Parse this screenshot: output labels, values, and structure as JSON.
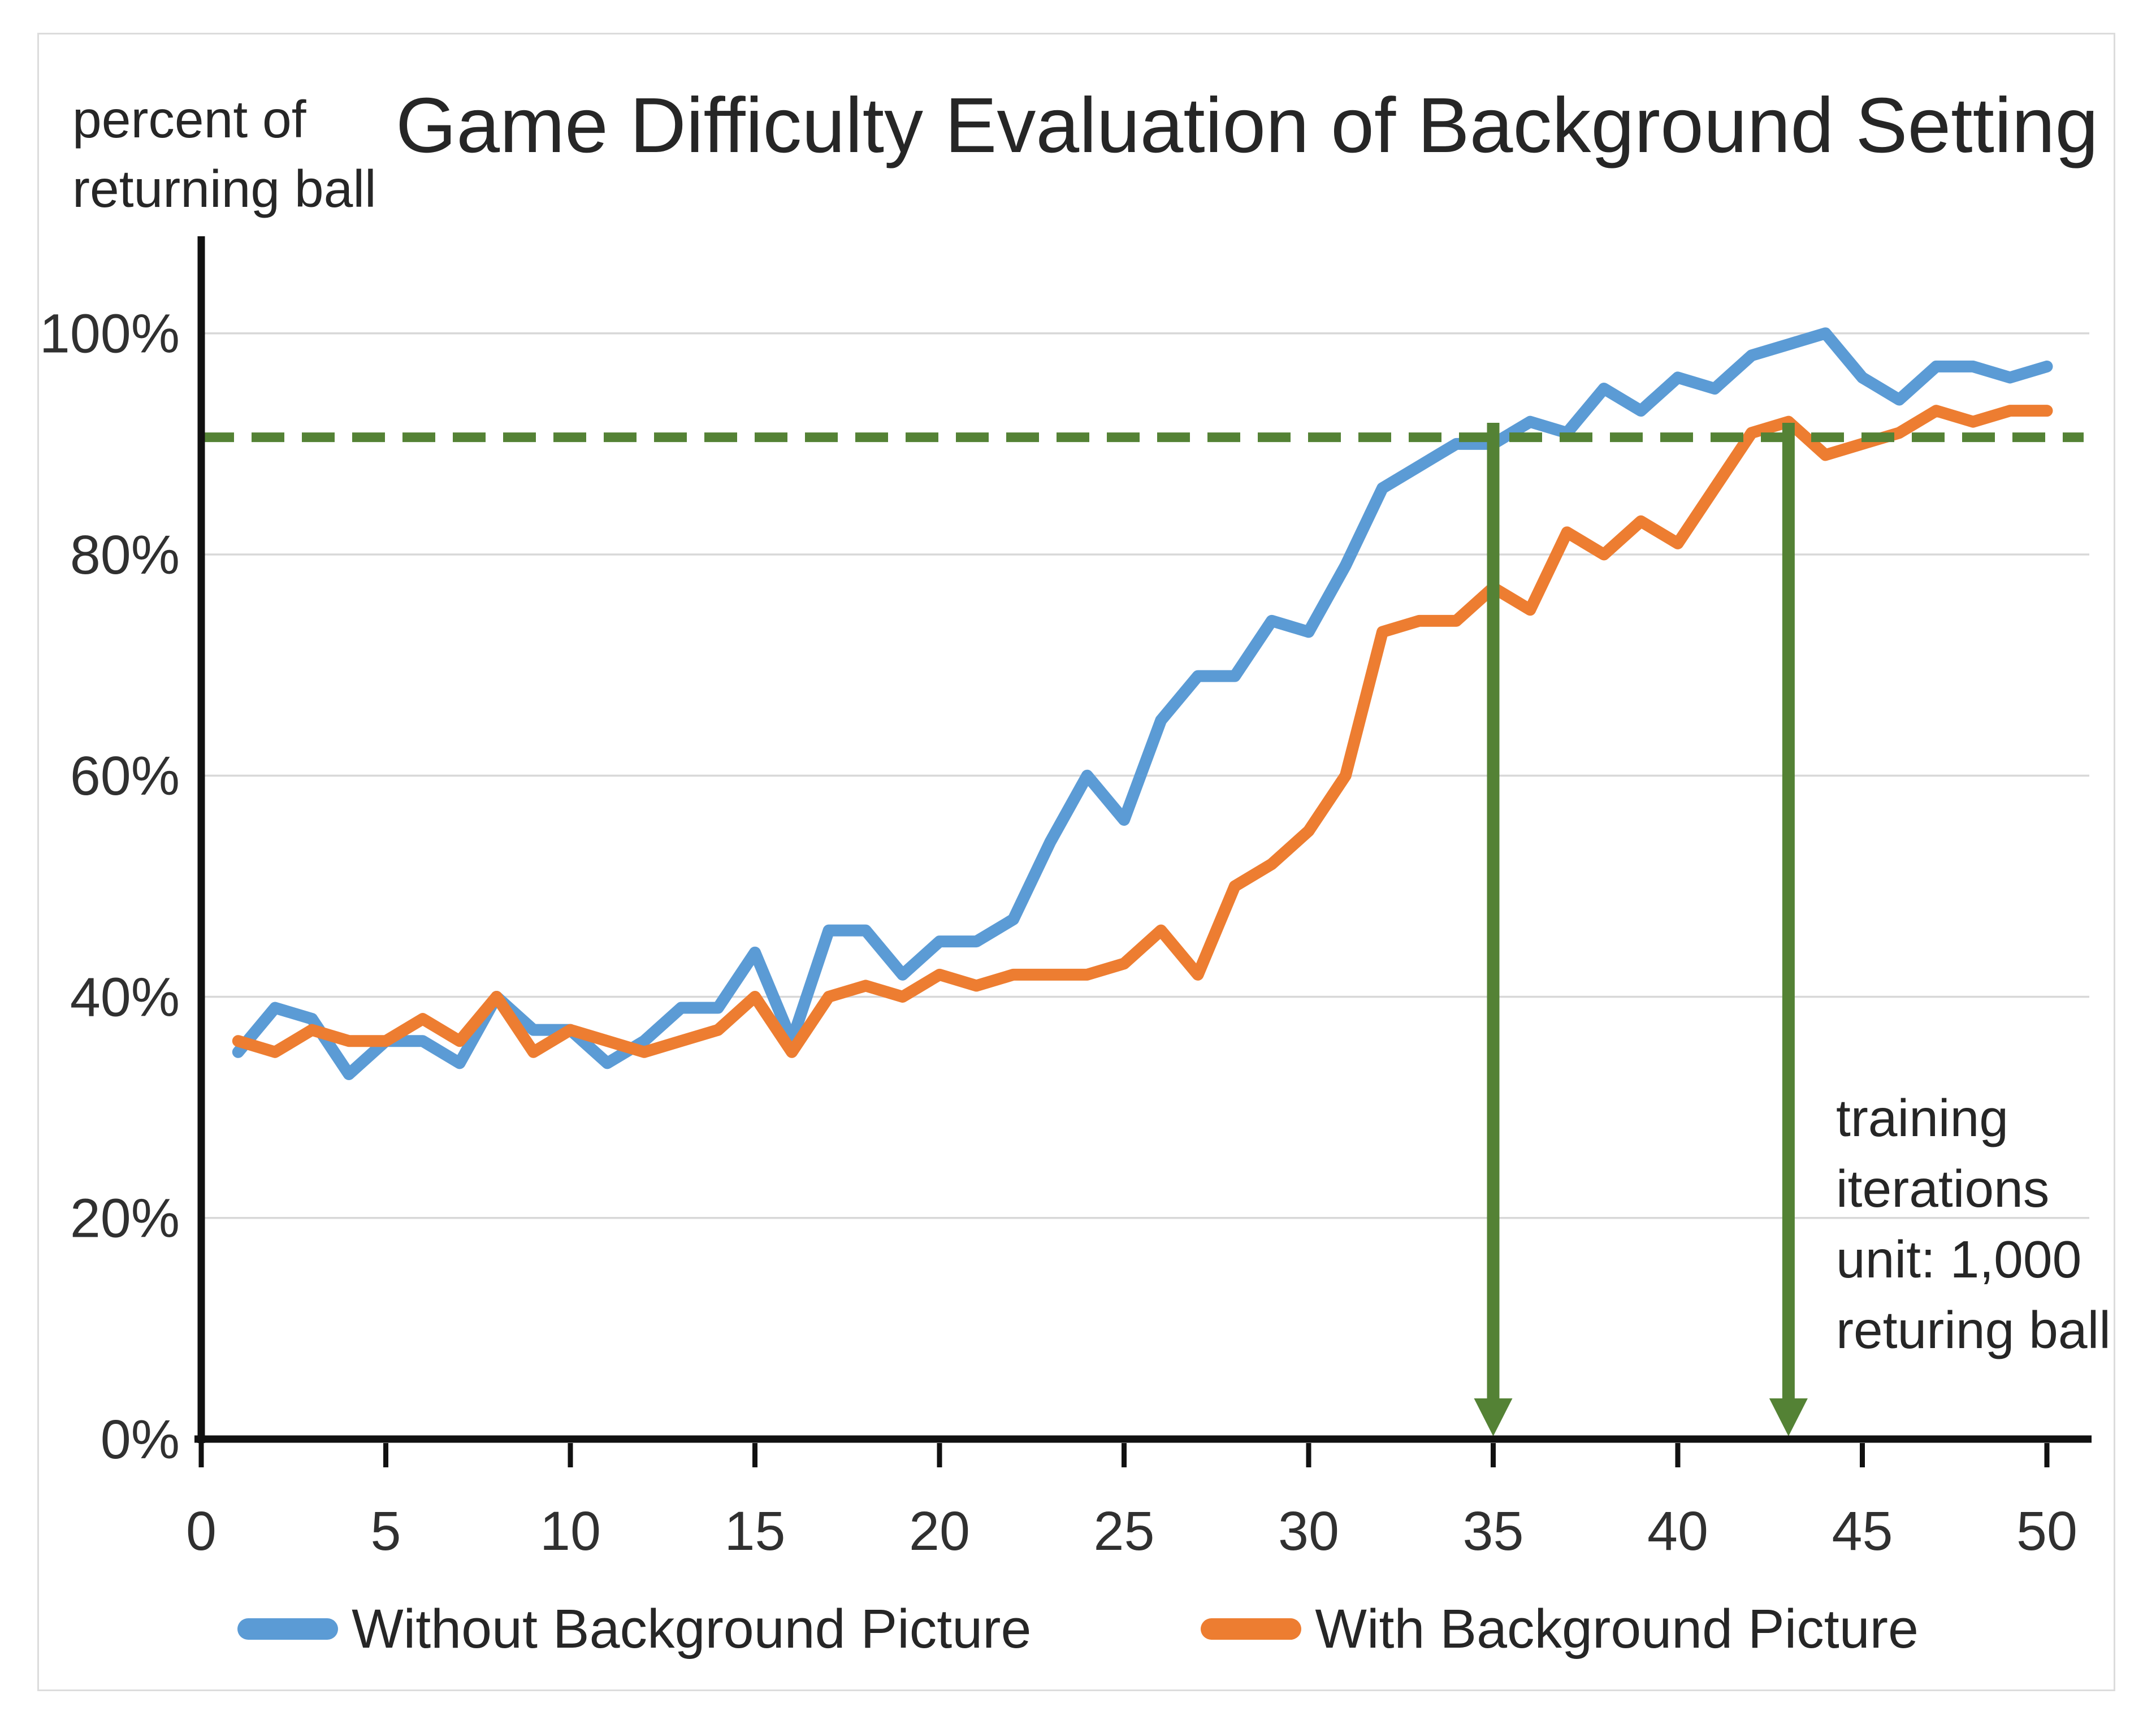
{
  "chart_data": {
    "type": "line",
    "title": "Game Difficulty Evaluation of Background Setting",
    "y_axis_label_lines": [
      "percent of",
      "returning ball"
    ],
    "x_ticks": [
      "0",
      "5",
      "10",
      "15",
      "20",
      "25",
      "30",
      "35",
      "40",
      "45",
      "50"
    ],
    "x_tick_values": [
      0,
      5,
      10,
      15,
      20,
      25,
      30,
      35,
      40,
      45,
      50
    ],
    "y_ticks": [
      "0%",
      "20%",
      "40%",
      "60%",
      "80%",
      "100%"
    ],
    "y_tick_values": [
      0,
      20,
      40,
      60,
      80,
      100
    ],
    "ylim": [
      0,
      110
    ],
    "xlim": [
      0,
      50
    ],
    "grid": "horizontal",
    "legend_position": "bottom",
    "x": [
      1,
      2,
      3,
      4,
      5,
      6,
      7,
      8,
      9,
      10,
      11,
      12,
      13,
      14,
      15,
      16,
      17,
      18,
      19,
      20,
      21,
      22,
      23,
      24,
      25,
      26,
      27,
      28,
      29,
      30,
      31,
      32,
      33,
      34,
      35,
      36,
      37,
      38,
      39,
      40,
      41,
      42,
      43,
      44,
      45,
      46,
      47,
      48,
      49,
      50
    ],
    "series": [
      {
        "name": "Without Background Picture",
        "color": "#5B9BD5",
        "values": [
          35,
          39,
          38,
          33,
          36,
          36,
          34,
          40,
          37,
          37,
          34,
          36,
          39,
          39,
          44,
          36,
          46,
          46,
          42,
          45,
          45,
          47,
          54,
          60,
          56,
          65,
          69,
          69,
          74,
          73,
          79,
          86,
          88,
          90,
          90,
          92,
          91,
          95,
          93,
          96,
          95,
          98,
          99,
          100,
          96,
          94,
          97,
          97,
          96,
          97
        ]
      },
      {
        "name": "With Background Picture",
        "color": "#ED7D31",
        "values": [
          36,
          35,
          37,
          36,
          36,
          38,
          36,
          40,
          35,
          37,
          36,
          35,
          36,
          37,
          40,
          35,
          40,
          41,
          40,
          42,
          41,
          42,
          42,
          42,
          43,
          46,
          42,
          50,
          52,
          55,
          60,
          73,
          74,
          74,
          77,
          75,
          82,
          80,
          83,
          81,
          86,
          91,
          92,
          89,
          90,
          91,
          93,
          92,
          93,
          93
        ]
      }
    ],
    "reference_line": {
      "value": 90.6,
      "style": "dashed",
      "color": "#548235"
    },
    "arrows_down": [
      {
        "x": 35,
        "color": "#548235"
      },
      {
        "x": 43,
        "color": "#548235"
      }
    ],
    "annotation": {
      "lines": [
        "training",
        "iterations",
        "unit: 1,000",
        "returing ball"
      ]
    },
    "colors": {
      "gridline": "#D8D8D8",
      "axis": "#111111",
      "tick_text": "#303030",
      "title_text": "#262626",
      "figure_border": "#DCDCDC"
    }
  }
}
